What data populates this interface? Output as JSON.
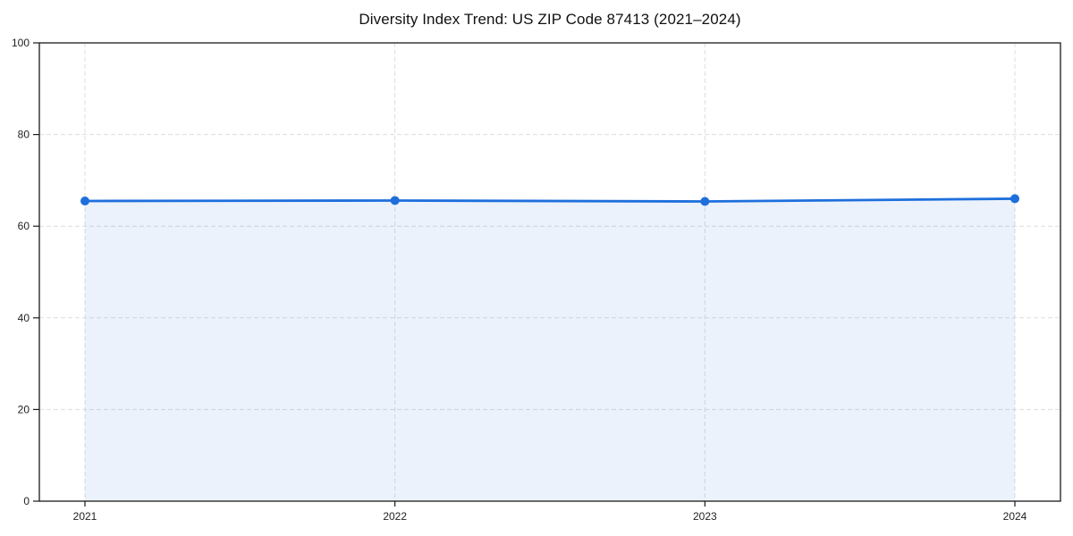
{
  "chart_data": {
    "type": "line",
    "title": "Diversity Index Trend: US ZIP Code 87413 (2021–2024)",
    "x": [
      "2021",
      "2022",
      "2023",
      "2024"
    ],
    "series": [
      {
        "name": "Diversity Index",
        "values": [
          65.5,
          65.6,
          65.4,
          66.0
        ]
      }
    ],
    "xlabel": "",
    "ylabel": "",
    "ylim": [
      0,
      100
    ],
    "yticks": [
      0,
      20,
      40,
      60,
      80,
      100
    ],
    "grid": true,
    "legend": "none",
    "area_fill": true,
    "colors": {
      "line": "#1e6fdc",
      "marker": "#1e6fdc",
      "fill": "rgba(30,111,220,0.09)",
      "grid": "#dddddd",
      "axis": "#1a1a1a",
      "tick_label": "#1f1f1f",
      "background": "#ffffff"
    }
  }
}
